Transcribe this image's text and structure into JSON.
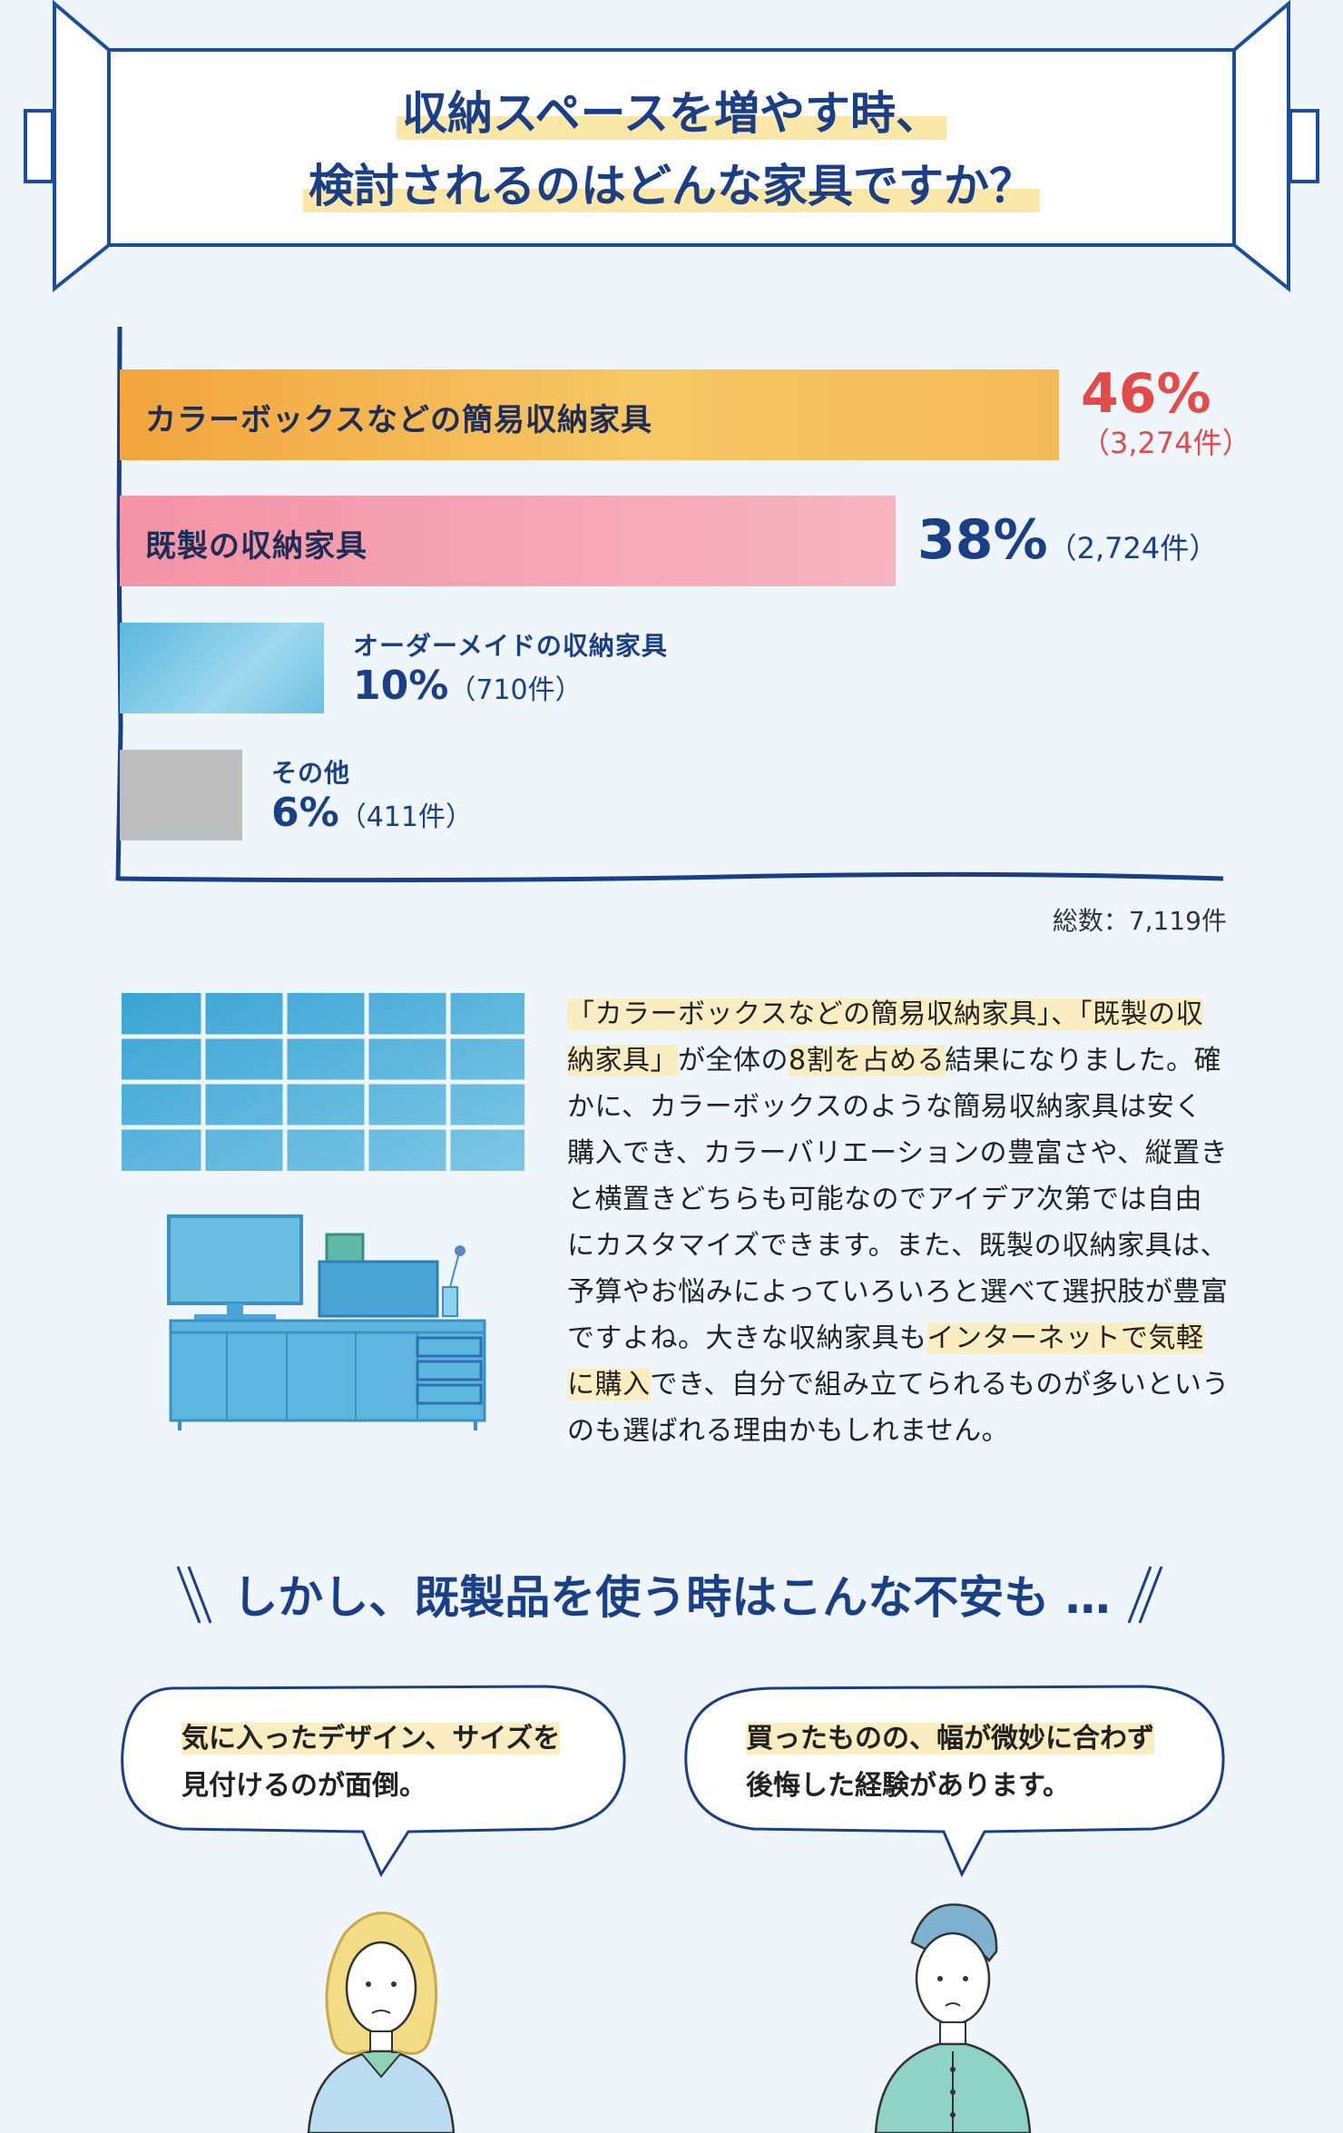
{
  "header": {
    "title_line1": "収納スペースを増やす時、",
    "title_line2": "検討されるのはどんな家具ですか？"
  },
  "chart_data": {
    "type": "bar",
    "orientation": "horizontal",
    "categories": [
      "カラーボックスなどの簡易収納家具",
      "既製の収納家具",
      "オーダーメイドの収納家具",
      "その他"
    ],
    "values": [
      46,
      38,
      10,
      6
    ],
    "counts": [
      "（3,274件）",
      "（2,724件）",
      "（710件）",
      "（411件）"
    ],
    "value_labels": [
      "46%",
      "38%",
      "10%",
      "6%"
    ],
    "colors": [
      "#f4b24f",
      "#f4a6b4",
      "#7cc8e6",
      "#bdbdbd"
    ],
    "total_label": "総数：7,119件"
  },
  "paragraph": {
    "p1": "「カラーボックスなどの簡易収納家具」、「既製の収納家具」",
    "p2": "が全体の",
    "p3": "8割を占める",
    "p4": "結果になりました。確かに、カラーボックスのような簡易収納家具は安く購入でき、カラーバリエーションの豊富さや、縦置きと横置きどちらも可能なのでアイデア次第では自由にカスタマイズできます。また、既製の収納家具は、予算やお悩みによっていろいろと選べて選択肢が豊富ですよね。大きな収納家具も",
    "p5": "インターネットで気軽に購入",
    "p6": "でき、自分で組み立てられるものが多いというのも選ばれる理由かもしれません。"
  },
  "section2": {
    "title": "しかし、既製品を使う時はこんな不安も …",
    "bubble_left_hl": "気に入ったデザイン、サイズを",
    "bubble_left_rest": "見付けるのが面倒。",
    "bubble_right_hl": "買ったものの、幅が微妙に合わず",
    "bubble_right_rest": "後悔した経験があります。"
  }
}
